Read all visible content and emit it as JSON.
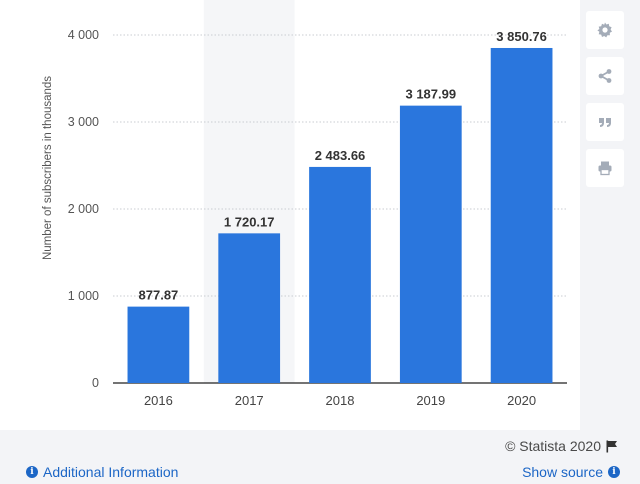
{
  "chart_data": {
    "type": "bar",
    "categories": [
      "2016",
      "2017",
      "2018",
      "2019",
      "2020"
    ],
    "values": [
      877.87,
      1720.17,
      2483.66,
      3187.99,
      3850.76
    ],
    "value_labels": [
      "877.87",
      "1 720.17",
      "2 483.66",
      "3 187.99",
      "3 850.76"
    ],
    "ylabel": "Number of subscribers in thousands",
    "ylim": [
      0,
      4000
    ],
    "yticks": [
      0,
      1000,
      2000,
      3000,
      4000
    ],
    "ytick_labels": [
      "0",
      "1 000",
      "2 000",
      "3 000",
      "4 000"
    ],
    "grid": true,
    "bar_color": "#2a76dd",
    "highlight_category": "2017"
  },
  "footer": {
    "copyright": "© Statista 2020",
    "additional_info": "Additional Information",
    "show_source": "Show source"
  },
  "tools": [
    "gear-icon",
    "share-icon",
    "quote-icon",
    "print-icon"
  ]
}
